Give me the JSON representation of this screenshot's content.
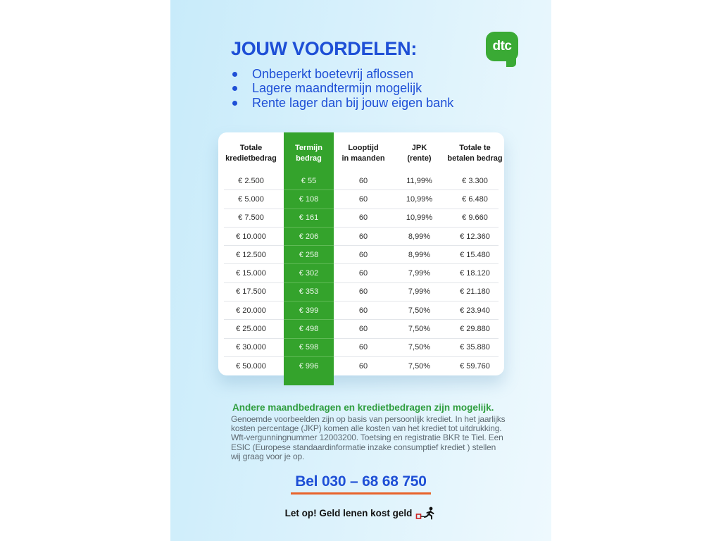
{
  "logo": {
    "text": "dtc"
  },
  "header": {
    "title": "JOUW VOORDELEN:",
    "bullets": [
      "Onbeperkt boetevrij aflossen",
      "Lagere maandtermijn mogelijk",
      "Rente lager dan bij jouw eigen bank"
    ]
  },
  "table": {
    "headers": [
      {
        "l1": "Totale",
        "l2": "kredietbedrag"
      },
      {
        "l1": "Termijn",
        "l2": "bedrag"
      },
      {
        "l1": "Looptijd",
        "l2": "in maanden"
      },
      {
        "l1": "JPK",
        "l2": "(rente)"
      },
      {
        "l1": "Totale te",
        "l2": "betalen bedrag"
      }
    ],
    "rows": [
      {
        "cells": [
          "€ 2.500",
          "€ 55",
          "60",
          "11,99%",
          "€ 3.300"
        ]
      },
      {
        "cells": [
          "€ 5.000",
          "€ 108",
          "60",
          "10,99%",
          "€ 6.480"
        ]
      },
      {
        "cells": [
          "€ 7.500",
          "€ 161",
          "60",
          "10,99%",
          "€ 9.660"
        ]
      },
      {
        "cells": [
          "€ 10.000",
          "€ 206",
          "60",
          "8,99%",
          "€ 12.360"
        ]
      },
      {
        "cells": [
          "€ 12.500",
          "€ 258",
          "60",
          "8,99%",
          "€ 15.480"
        ]
      },
      {
        "cells": [
          "€ 15.000",
          "€ 302",
          "60",
          "7,99%",
          "€ 18.120"
        ]
      },
      {
        "cells": [
          "€ 17.500",
          "€ 353",
          "60",
          "7,99%",
          "€ 21.180"
        ]
      },
      {
        "cells": [
          "€ 20.000",
          "€ 399",
          "60",
          "7,50%",
          "€ 23.940"
        ]
      },
      {
        "cells": [
          "€ 25.000",
          "€ 498",
          "60",
          "7,50%",
          "€ 29.880"
        ]
      },
      {
        "cells": [
          "€ 30.000",
          "€ 598",
          "60",
          "7,50%",
          "€ 35.880"
        ]
      },
      {
        "cells": [
          "€ 50.000",
          "€ 996",
          "60",
          "7,50%",
          "€ 59.760"
        ]
      }
    ]
  },
  "footer": {
    "heading": "Andere maandbedragen en kredietbedragen zijn mogelijk.",
    "body": "Genoemde voorbeelden zijn op basis van persoonlijk krediet. In het jaarlijks kosten percentage (JKP) komen alle kosten van het krediet tot uitdrukking. Wft-vergunningnummer 12003200. Toetsing en registratie BKR te Tiel. Een ESIC (Europese standaardinformatie inzake consumptief krediet ) stellen wij graag voor je op.",
    "phone": "Bel 030 – 68 68 750",
    "warning": "Let op! Geld lenen kost geld"
  },
  "colors": {
    "accent_blue": "#1e4fd6",
    "table_green": "#34a32c",
    "logo_green": "#3aaa35",
    "footer_green": "#2f9e3f",
    "underline_orange": "#e8632b",
    "band_blue": "#c8ebfa"
  }
}
